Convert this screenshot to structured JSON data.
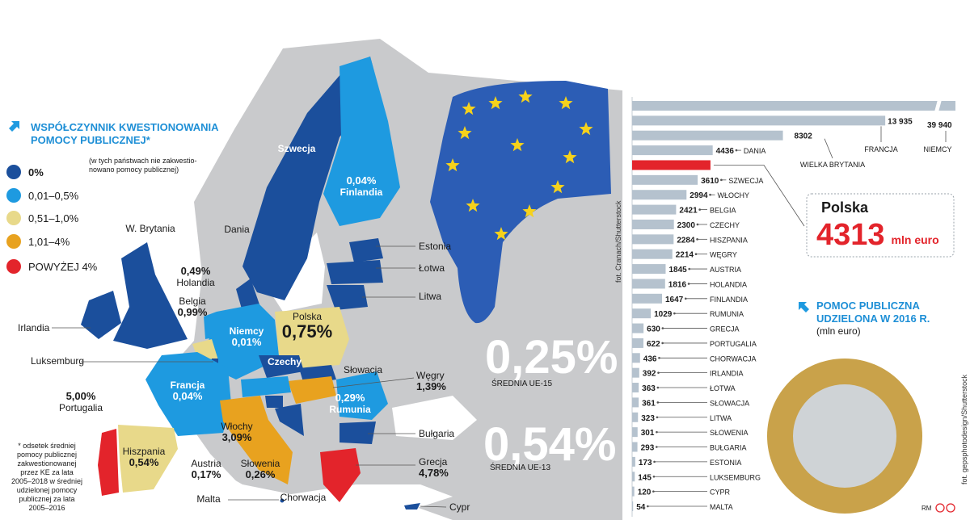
{
  "legend": {
    "title_lines": [
      "WSPÓŁCZYNNIK KWESTIONOWANIA",
      "POMOCY PUBLICZNEJ*"
    ],
    "items": [
      {
        "label": "0%",
        "color": "#1b4f9c"
      },
      {
        "label": "0,01–0,5%",
        "color": "#1e9ae0"
      },
      {
        "label": "0,51–1,0%",
        "color": "#e8d98a"
      },
      {
        "label": "1,01–4%",
        "color": "#e8a21f"
      },
      {
        "label": "POWYŻEJ 4%",
        "color": "#e3242b"
      }
    ],
    "note_lines": [
      "(w tych państwach nie zakwestio-",
      "nowano pomocy publicznej)"
    ]
  },
  "footnote_lines": [
    "* odsetek średniej",
    "pomocy publicznej",
    "zakwestionowanej",
    "przez KE za lata",
    "2005–2018 w średniej",
    "udzielonej pomocy",
    "publicznej za lata",
    "2005–2016"
  ],
  "averages": [
    {
      "value": "0,25%",
      "label": "ŚREDNIA UE-15"
    },
    {
      "value": "0,54%",
      "label": "ŚREDNIA UE-13"
    }
  ],
  "map": {
    "labels": [
      {
        "lines": [
          "Szwecja"
        ]
      },
      {
        "lines": [
          "0,04%",
          "Finlandia"
        ]
      },
      {
        "lines": [
          "Dania"
        ]
      },
      {
        "lines": [
          "W. Brytania"
        ]
      },
      {
        "lines": [
          "Irlandia"
        ]
      },
      {
        "lines": [
          "0,49%",
          "Holandia"
        ]
      },
      {
        "lines": [
          "Belgia",
          "0,99%"
        ]
      },
      {
        "lines": [
          "Luksemburg"
        ]
      },
      {
        "lines": [
          "Niemcy",
          "0,01%"
        ]
      },
      {
        "lines": [
          "Polska",
          "0,75%"
        ]
      },
      {
        "lines": [
          "Czechy"
        ]
      },
      {
        "lines": [
          "Francja",
          "0,04%"
        ]
      },
      {
        "lines": [
          "Estonia"
        ]
      },
      {
        "lines": [
          "Łotwa"
        ]
      },
      {
        "lines": [
          "Litwa"
        ]
      },
      {
        "lines": [
          "Słowacja"
        ]
      },
      {
        "lines": [
          "Węgry",
          "1,39%"
        ]
      },
      {
        "lines": [
          "0,29%",
          "Rumunia"
        ]
      },
      {
        "lines": [
          "Bułgaria"
        ]
      },
      {
        "lines": [
          "Grecja",
          "4,78%"
        ]
      },
      {
        "lines": [
          "5,00%",
          "Portugalia"
        ]
      },
      {
        "lines": [
          "Hiszpania",
          "0,54%"
        ]
      },
      {
        "lines": [
          "Austria",
          "0,17%"
        ]
      },
      {
        "lines": [
          "Włochy",
          "3,09%"
        ]
      },
      {
        "lines": [
          "Słowenia",
          "0,26%"
        ]
      },
      {
        "lines": [
          "Chorwacja"
        ]
      },
      {
        "lines": [
          "Malta"
        ]
      },
      {
        "lines": [
          "Cypr"
        ]
      }
    ]
  },
  "credits": {
    "photo1": "fot. Cranach/Shutterstock",
    "photo2": "fot. gepsphotodesign/Shutterstock",
    "author": "RM"
  },
  "chart_data": {
    "type": "bar",
    "orientation": "horizontal",
    "title_lines": [
      "POMOC PUBLICZNA",
      "UDZIELONA W 2016 R."
    ],
    "subtitle": "(mln euro)",
    "categories": [
      "NIEMCY",
      "FRANCJA",
      "WIELKA BRYTANIA",
      "DANIA",
      "Polska",
      "SZWECJA",
      "WŁOCHY",
      "BELGIA",
      "CZECHY",
      "HISZPANIA",
      "WĘGRY",
      "AUSTRIA",
      "HOLANDIA",
      "FINLANDIA",
      "RUMUNIA",
      "GRECJA",
      "PORTUGALIA",
      "CHORWACJA",
      "IRLANDIA",
      "ŁOTWA",
      "SŁOWACJA",
      "LITWA",
      "SŁOWENIA",
      "BUŁGARIA",
      "ESTONIA",
      "LUKSEMBURG",
      "CYPR",
      "MALTA"
    ],
    "values": [
      39940,
      13935,
      8302,
      4436,
      4313,
      3610,
      2994,
      2421,
      2300,
      2284,
      2214,
      1845,
      1816,
      1647,
      1029,
      630,
      622,
      436,
      392,
      363,
      361,
      323,
      301,
      293,
      173,
      145,
      120,
      54
    ],
    "value_labels": [
      "39 940",
      "13 935",
      "8302",
      "4436",
      "4313",
      "3610",
      "2994",
      "2421",
      "2300",
      "2284",
      "2214",
      "1845",
      "1816",
      "1647",
      "1029",
      "630",
      "622",
      "436",
      "392",
      "363",
      "361",
      "323",
      "301",
      "293",
      "173",
      "145",
      "120",
      "54"
    ],
    "colors": [
      "#b5c2ce",
      "#b5c2ce",
      "#b5c2ce",
      "#b5c2ce",
      "#e3242b",
      "#b5c2ce",
      "#b5c2ce",
      "#b5c2ce",
      "#b5c2ce",
      "#b5c2ce",
      "#b5c2ce",
      "#b5c2ce",
      "#b5c2ce",
      "#b5c2ce",
      "#b5c2ce",
      "#b5c2ce",
      "#b5c2ce",
      "#b5c2ce",
      "#b5c2ce",
      "#b5c2ce",
      "#b5c2ce",
      "#b5c2ce",
      "#b5c2ce",
      "#b5c2ce",
      "#b5c2ce",
      "#b5c2ce",
      "#b5c2ce",
      "#b5c2ce"
    ],
    "xlim": [
      0,
      17800
    ],
    "axis_break": true,
    "callout_unit": "mln euro"
  }
}
